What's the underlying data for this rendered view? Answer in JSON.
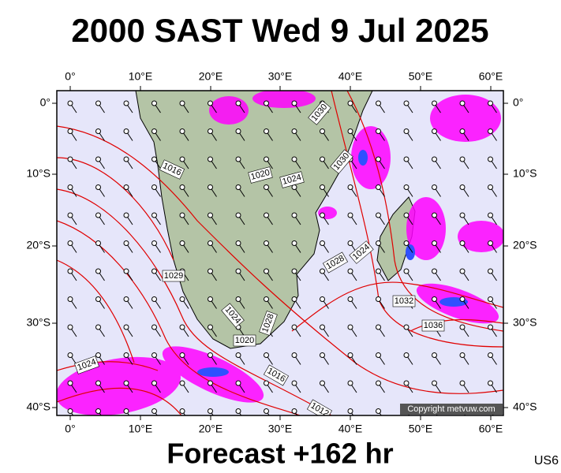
{
  "header": {
    "title": "2000 SAST Wed 9 Jul 2025"
  },
  "map": {
    "top_ticks": [
      "0°",
      "10°E",
      "20°E",
      "30°E",
      "40°E",
      "50°E",
      "60°E"
    ],
    "bottom_ticks": [
      "0°",
      "10°E",
      "20°E",
      "30°E",
      "40°E",
      "50°E",
      "60°E"
    ],
    "left_ticks": [
      "0°",
      "10°S",
      "20°S",
      "30°S",
      "40°S"
    ],
    "right_ticks": [
      "0°",
      "10°S",
      "20°S",
      "30°S",
      "40°S"
    ],
    "isobar_labels": [
      "1030",
      "1016",
      "1020",
      "1024",
      "1030",
      "1029",
      "1028",
      "1024",
      "1024",
      "1028",
      "1020",
      "1032",
      "1036",
      "1016",
      "1024",
      "1012"
    ],
    "copyright": "Copyright metvuw.com"
  },
  "footer": {
    "forecast": "Forecast +162 hr",
    "code": "US6"
  }
}
